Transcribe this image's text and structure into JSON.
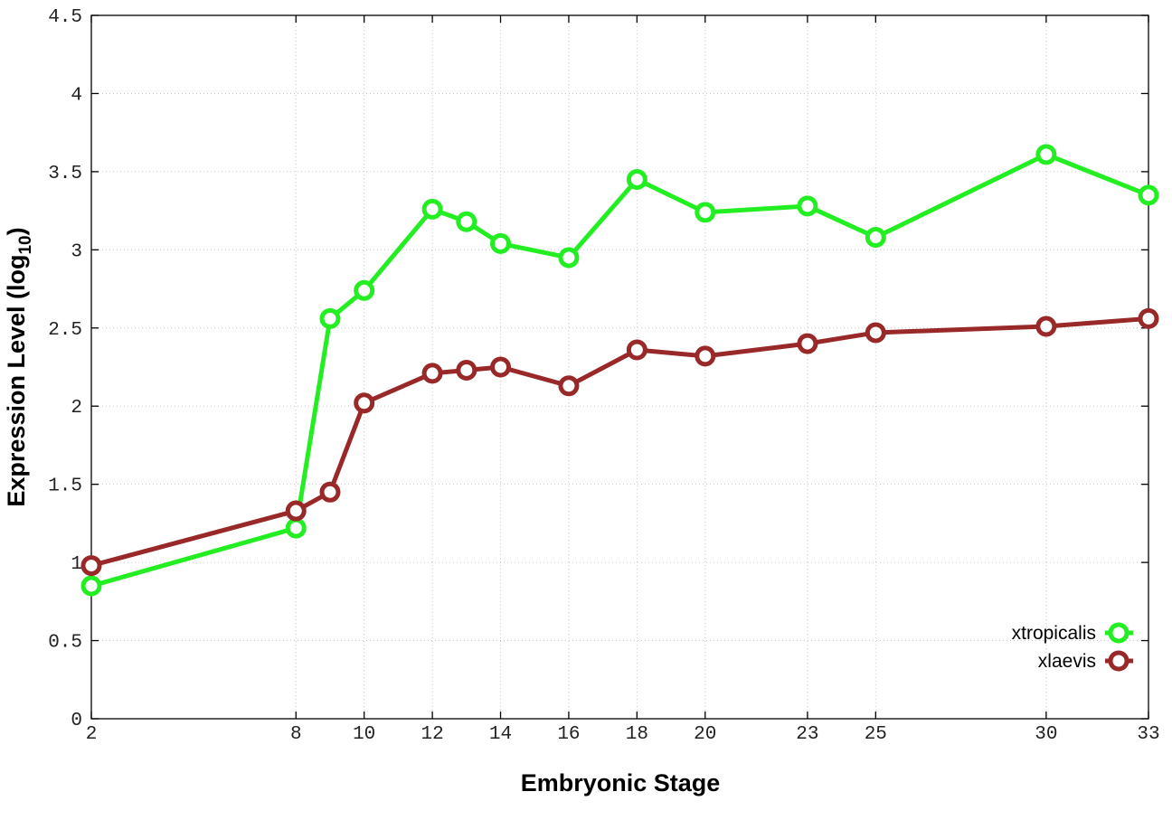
{
  "chart_data": {
    "type": "line",
    "xlabel": "Embryonic Stage",
    "ylabel_main": "Expression Level (log",
    "ylabel_sub": "10",
    "ylabel_close": ")",
    "xlim": [
      2,
      33
    ],
    "ylim": [
      0,
      4.5
    ],
    "x_ticks": [
      2,
      8,
      10,
      12,
      14,
      16,
      18,
      20,
      23,
      25,
      30,
      33
    ],
    "x_tick_labels": [
      "2",
      "8",
      "10",
      "12",
      "14",
      "16",
      "18",
      "20",
      "23",
      "25",
      "30",
      "33"
    ],
    "y_ticks": [
      0,
      0.5,
      1,
      1.5,
      2,
      2.5,
      3,
      3.5,
      4,
      4.5
    ],
    "y_tick_labels": [
      "0",
      "0.5",
      "1",
      "1.5",
      "2",
      "2.5",
      "3",
      "3.5",
      "4",
      "4.5"
    ],
    "grid": true,
    "legend_position": "bottom-right",
    "x": [
      2,
      8,
      9,
      10,
      12,
      13,
      14,
      16,
      18,
      20,
      23,
      25,
      30,
      33
    ],
    "series": [
      {
        "name": "xtropicalis",
        "color": "#22ee22",
        "values": [
          0.85,
          1.22,
          2.56,
          2.74,
          3.26,
          3.18,
          3.04,
          2.95,
          3.45,
          3.24,
          3.28,
          3.08,
          3.61,
          3.35
        ]
      },
      {
        "name": "xlaevis",
        "color": "#992828",
        "values": [
          0.98,
          1.33,
          1.45,
          2.02,
          2.21,
          2.23,
          2.25,
          2.13,
          2.36,
          2.32,
          2.4,
          2.47,
          2.51,
          2.56
        ]
      }
    ]
  }
}
